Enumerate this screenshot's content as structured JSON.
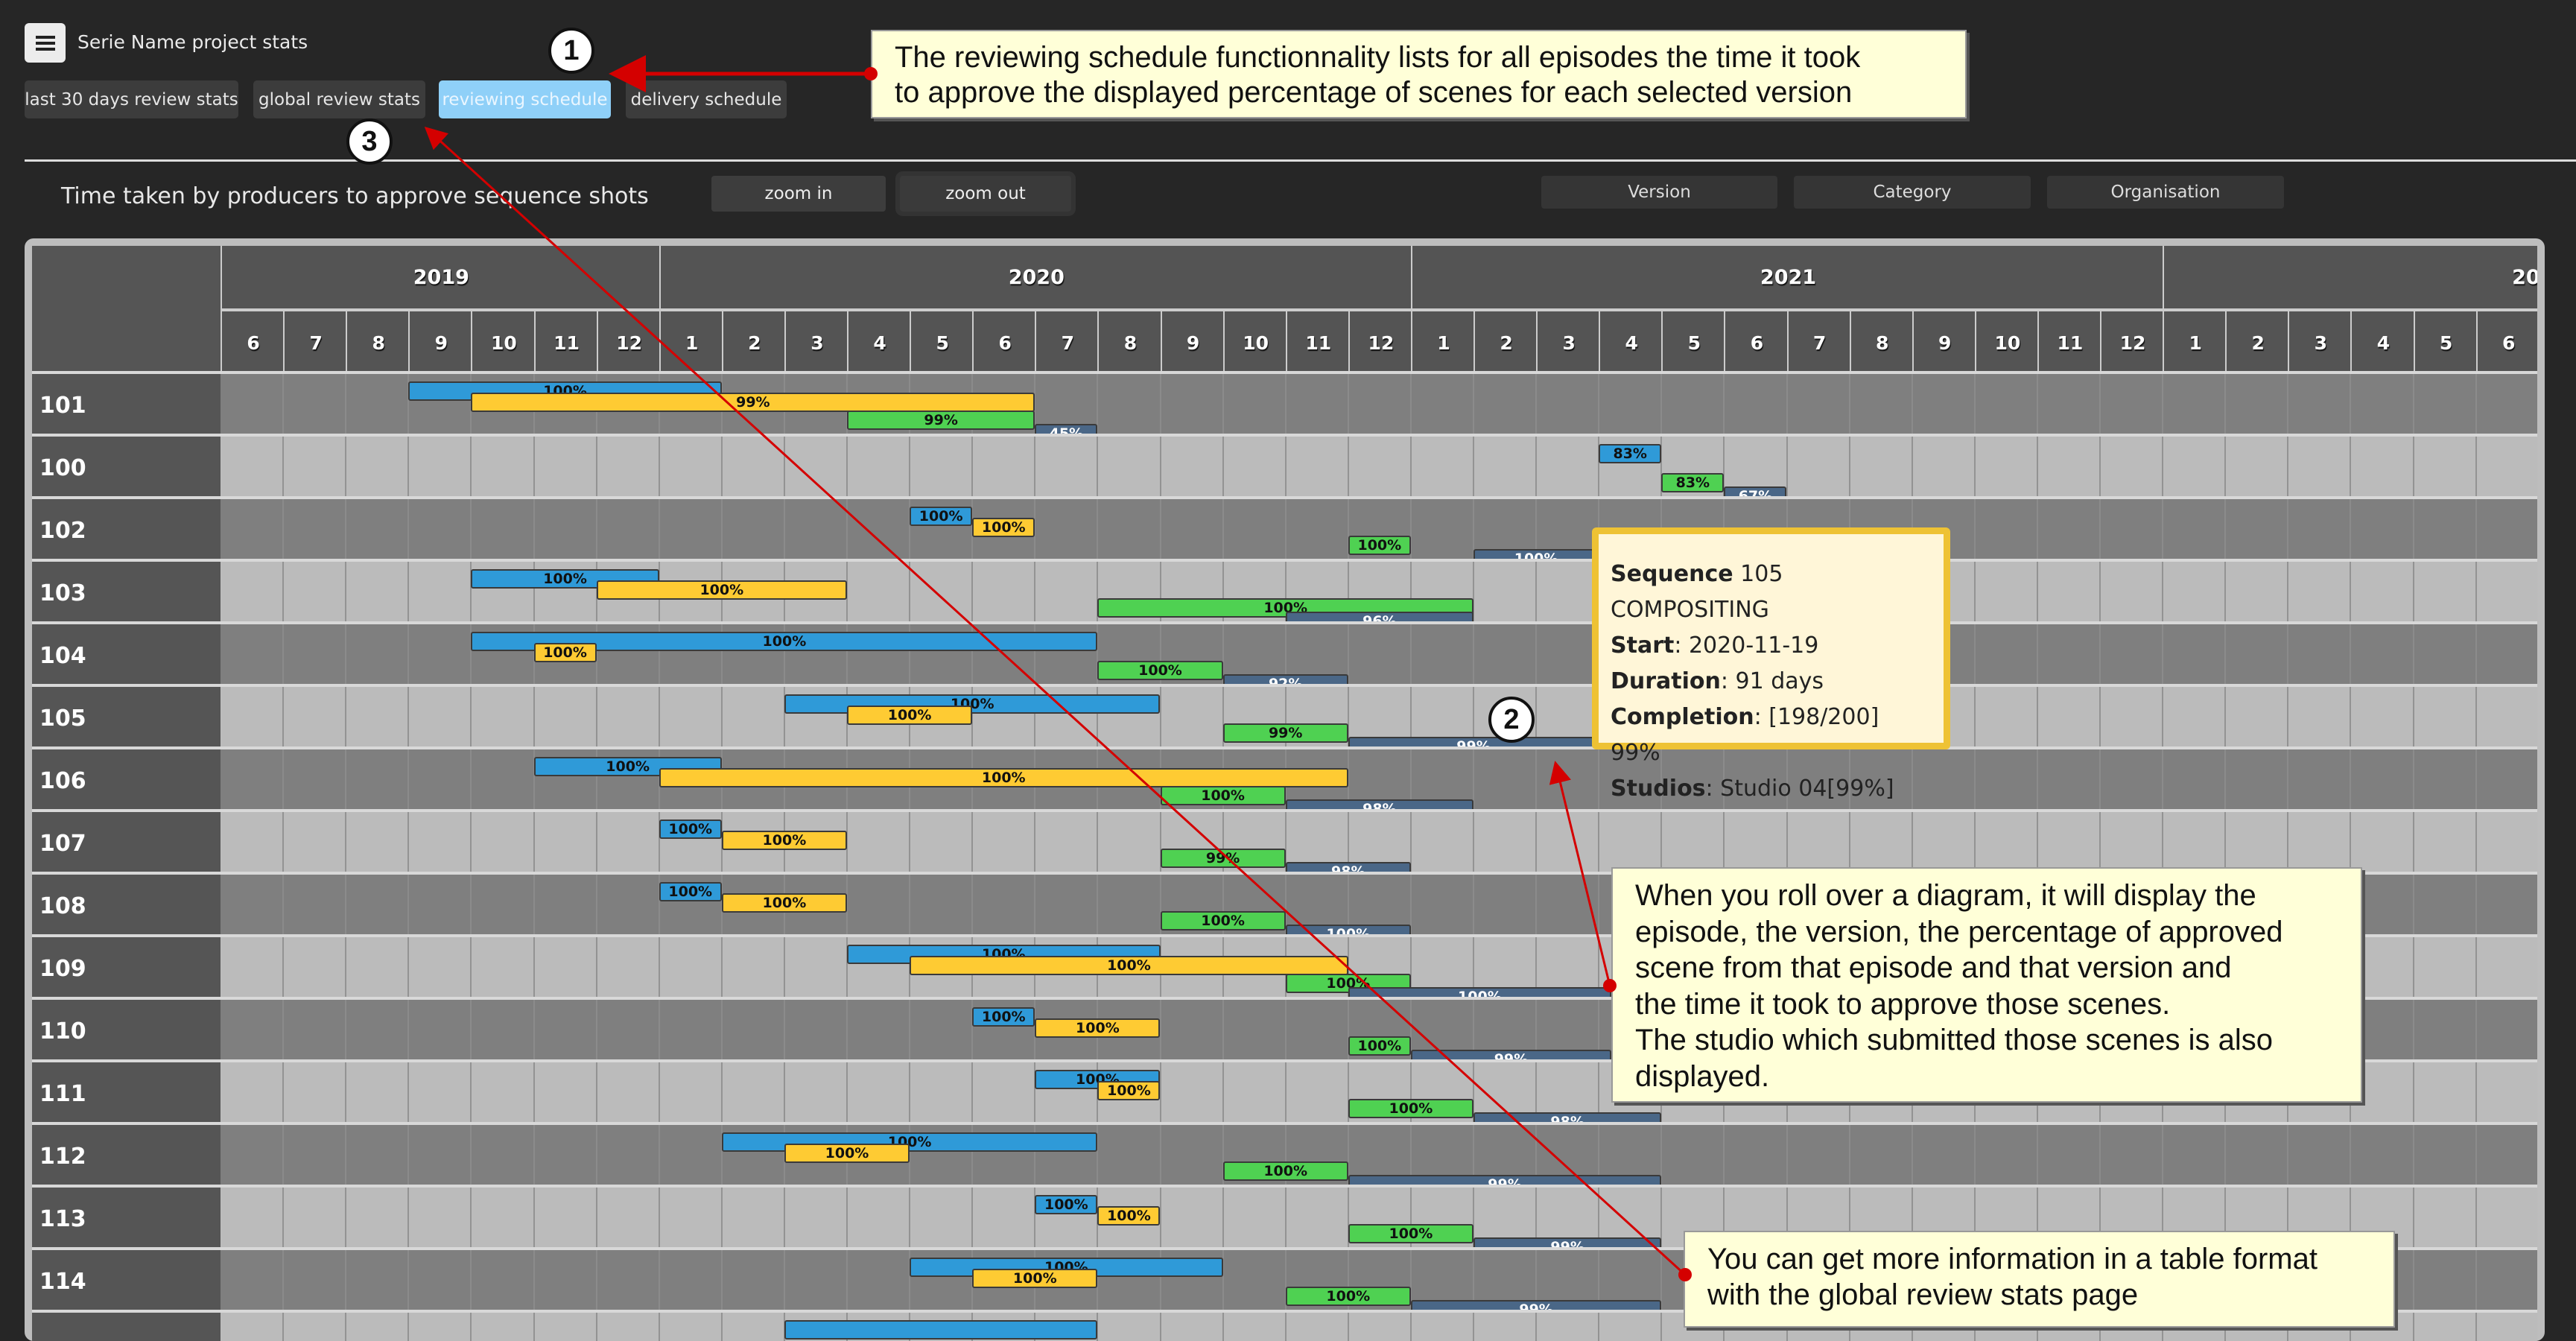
{
  "header": {
    "menu_icon": "hamburger-icon",
    "title": "Serie Name project stats"
  },
  "tabs": [
    {
      "label": "last 30 days review stats",
      "active": false
    },
    {
      "label": "global review stats",
      "active": false
    },
    {
      "label": "reviewing schedule",
      "active": true
    },
    {
      "label": "delivery schedule",
      "active": false
    }
  ],
  "toolbar": {
    "chart_title": "Time taken by producers to approve sequence shots",
    "zoom_in": "zoom in",
    "zoom_out": "zoom out",
    "filters": [
      "Version",
      "Category",
      "Organisation"
    ]
  },
  "colors": {
    "blue": "#2f9ad8",
    "yellow": "#fecb33",
    "green": "#4fd152",
    "darkblue": "#4a6787",
    "tab_active": "#8fd0f8",
    "tooltip_border": "#eec234",
    "annotation_red": "#d40000"
  },
  "timeline": {
    "years": [
      {
        "label": "2019",
        "months": 7
      },
      {
        "label": "2020",
        "months": 12
      },
      {
        "label": "2021",
        "months": 12
      },
      {
        "label": "20",
        "months": 6
      }
    ],
    "months": [
      "6",
      "7",
      "8",
      "9",
      "10",
      "11",
      "12",
      "1",
      "2",
      "3",
      "4",
      "5",
      "6",
      "7",
      "8",
      "9",
      "10",
      "11",
      "12",
      "1",
      "2",
      "3",
      "4",
      "5",
      "6",
      "7",
      "8",
      "9",
      "10",
      "11",
      "12",
      "1",
      "2",
      "3",
      "4",
      "5",
      "6"
    ]
  },
  "chart_data": {
    "type": "gantt",
    "title": "Time taken by producers to approve sequence shots",
    "x_axis": "Months from 2019-06 to 2022-06",
    "series_colors": {
      "blue": "#2f9ad8",
      "yellow": "#fecb33",
      "green": "#4fd152",
      "darkblue": "#4a6787"
    },
    "rows": [
      {
        "episode": "101",
        "bars": [
          {
            "color": "blue",
            "start": 3,
            "end": 8,
            "label": "100%"
          },
          {
            "color": "yellow",
            "start": 4,
            "end": 13,
            "label": "99%"
          },
          {
            "color": "green",
            "start": 10,
            "end": 13,
            "label": "99%"
          },
          {
            "color": "darkblue",
            "start": 13,
            "end": 14,
            "label": "45%"
          }
        ]
      },
      {
        "episode": "100",
        "bars": [
          {
            "color": "blue",
            "start": 22,
            "end": 23,
            "label": "83%"
          },
          {
            "color": "green",
            "start": 23,
            "end": 24,
            "label": "83%"
          },
          {
            "color": "darkblue",
            "start": 24,
            "end": 25,
            "label": "67%"
          }
        ]
      },
      {
        "episode": "102",
        "bars": [
          {
            "color": "blue",
            "start": 11,
            "end": 12,
            "label": "100%"
          },
          {
            "color": "yellow",
            "start": 12,
            "end": 13,
            "label": "100%"
          },
          {
            "color": "green",
            "start": 18,
            "end": 19,
            "label": "100%"
          },
          {
            "color": "darkblue",
            "start": 20,
            "end": 22,
            "label": "100%"
          }
        ]
      },
      {
        "episode": "103",
        "bars": [
          {
            "color": "blue",
            "start": 4,
            "end": 7,
            "label": "100%"
          },
          {
            "color": "yellow",
            "start": 6,
            "end": 10,
            "label": "100%"
          },
          {
            "color": "green",
            "start": 14,
            "end": 20,
            "label": "100%"
          },
          {
            "color": "darkblue",
            "start": 17,
            "end": 20,
            "label": "96%"
          }
        ]
      },
      {
        "episode": "104",
        "bars": [
          {
            "color": "blue",
            "start": 4,
            "end": 14,
            "label": "100%"
          },
          {
            "color": "yellow",
            "start": 5,
            "end": 6,
            "label": "100%"
          },
          {
            "color": "green",
            "start": 14,
            "end": 16,
            "label": "100%"
          },
          {
            "color": "darkblue",
            "start": 16,
            "end": 18,
            "label": "92%"
          }
        ]
      },
      {
        "episode": "105",
        "bars": [
          {
            "color": "blue",
            "start": 9,
            "end": 15,
            "label": "100%"
          },
          {
            "color": "yellow",
            "start": 10,
            "end": 12,
            "label": "100%"
          },
          {
            "color": "green",
            "start": 16,
            "end": 18,
            "label": "99%"
          },
          {
            "color": "darkblue",
            "start": 18,
            "end": 22,
            "label": "99%"
          }
        ]
      },
      {
        "episode": "106",
        "bars": [
          {
            "color": "blue",
            "start": 5,
            "end": 8,
            "label": "100%"
          },
          {
            "color": "yellow",
            "start": 7,
            "end": 18,
            "label": "100%"
          },
          {
            "color": "green",
            "start": 15,
            "end": 17,
            "label": "100%"
          },
          {
            "color": "darkblue",
            "start": 17,
            "end": 20,
            "label": "98%"
          }
        ]
      },
      {
        "episode": "107",
        "bars": [
          {
            "color": "blue",
            "start": 7,
            "end": 8,
            "label": "100%"
          },
          {
            "color": "yellow",
            "start": 8,
            "end": 10,
            "label": "100%"
          },
          {
            "color": "green",
            "start": 15,
            "end": 17,
            "label": "99%"
          },
          {
            "color": "darkblue",
            "start": 17,
            "end": 19,
            "label": "98%"
          }
        ]
      },
      {
        "episode": "108",
        "bars": [
          {
            "color": "blue",
            "start": 7,
            "end": 8,
            "label": "100%"
          },
          {
            "color": "yellow",
            "start": 8,
            "end": 10,
            "label": "100%"
          },
          {
            "color": "green",
            "start": 15,
            "end": 17,
            "label": "100%"
          },
          {
            "color": "darkblue",
            "start": 17,
            "end": 19,
            "label": "100%"
          }
        ]
      },
      {
        "episode": "109",
        "bars": [
          {
            "color": "blue",
            "start": 10,
            "end": 15,
            "label": "100%"
          },
          {
            "color": "yellow",
            "start": 11,
            "end": 18,
            "label": "100%"
          },
          {
            "color": "green",
            "start": 17,
            "end": 19,
            "label": "100%"
          },
          {
            "color": "darkblue",
            "start": 18,
            "end": 22.2,
            "label": "100%"
          }
        ]
      },
      {
        "episode": "110",
        "bars": [
          {
            "color": "blue",
            "start": 12,
            "end": 13,
            "label": "100%"
          },
          {
            "color": "yellow",
            "start": 13,
            "end": 15,
            "label": "100%"
          },
          {
            "color": "green",
            "start": 18,
            "end": 19,
            "label": "100%"
          },
          {
            "color": "darkblue",
            "start": 19,
            "end": 22.2,
            "label": "99%"
          }
        ]
      },
      {
        "episode": "111",
        "bars": [
          {
            "color": "blue",
            "start": 13,
            "end": 15,
            "label": "100%"
          },
          {
            "color": "yellow",
            "start": 14,
            "end": 15,
            "label": "100%"
          },
          {
            "color": "green",
            "start": 18,
            "end": 20,
            "label": "100%"
          },
          {
            "color": "darkblue",
            "start": 20,
            "end": 23,
            "label": "98%"
          }
        ]
      },
      {
        "episode": "112",
        "bars": [
          {
            "color": "blue",
            "start": 8,
            "end": 14,
            "label": "100%"
          },
          {
            "color": "yellow",
            "start": 9,
            "end": 11,
            "label": "100%"
          },
          {
            "color": "green",
            "start": 16,
            "end": 18,
            "label": "100%"
          },
          {
            "color": "darkblue",
            "start": 18,
            "end": 23,
            "label": "99%"
          }
        ]
      },
      {
        "episode": "113",
        "bars": [
          {
            "color": "blue",
            "start": 13,
            "end": 14,
            "label": "100%"
          },
          {
            "color": "yellow",
            "start": 14,
            "end": 15,
            "label": "100%"
          },
          {
            "color": "green",
            "start": 18,
            "end": 20,
            "label": "100%"
          },
          {
            "color": "darkblue",
            "start": 20,
            "end": 23,
            "label": "99%"
          }
        ]
      },
      {
        "episode": "114",
        "bars": [
          {
            "color": "blue",
            "start": 11,
            "end": 16,
            "label": "100%"
          },
          {
            "color": "yellow",
            "start": 12,
            "end": 14,
            "label": "100%"
          },
          {
            "color": "green",
            "start": 17,
            "end": 19,
            "label": "100%"
          },
          {
            "color": "darkblue",
            "start": 19,
            "end": 23,
            "label": "99%"
          }
        ]
      },
      {
        "episode": "",
        "bars": [
          {
            "color": "blue",
            "start": 9,
            "end": 14,
            "label": ""
          }
        ]
      }
    ]
  },
  "tooltip": {
    "sequence_label": "Sequence",
    "sequence_value": " 105 COMPOSITING",
    "start_label": "Start",
    "start_value": ": 2020-11-19",
    "duration_label": "Duration",
    "duration_value": ": 91 days",
    "completion_label": "Completion",
    "completion_value": ": [198/200] 99%",
    "studios_label": "Studios",
    "studios_value": ": Studio 04[99%]"
  },
  "annotations": {
    "marker_1": "1",
    "marker_2": "2",
    "marker_3": "3",
    "callout_1": [
      "The reviewing schedule functionnality lists for all episodes the time it took",
      "to approve the displayed percentage of scenes for each selected version"
    ],
    "callout_2": [
      "When you roll over a diagram, it will display the",
      "episode, the version, the percentage of approved",
      "scene from that episode and that version and",
      "the time it took to approve those scenes.",
      "The studio which submitted those scenes is also",
      "displayed."
    ],
    "callout_3": [
      "You can get more information in a table format",
      "with the global review stats page"
    ]
  }
}
